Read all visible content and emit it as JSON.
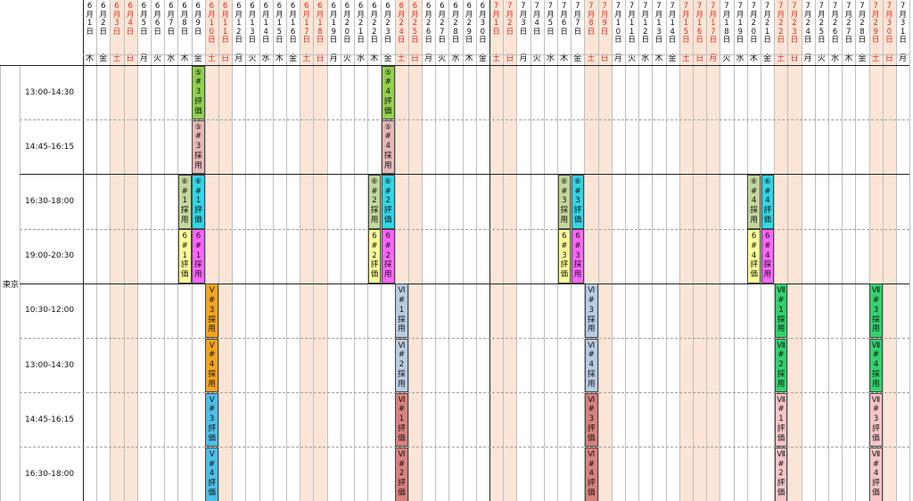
{
  "sheet": {
    "region": "東京",
    "colors": {
      "weekend_fill": "#fbe5d6",
      "red_text": "#e0281a",
      "grid_minor": "#bfbfbf",
      "grid_major": "#222222",
      "grid_dash": "#a0a0a0"
    },
    "dates": [
      {
        "m": "6",
        "d": "1",
        "dow": "木",
        "we": false
      },
      {
        "m": "6",
        "d": "2",
        "dow": "金",
        "we": false
      },
      {
        "m": "6",
        "d": "3",
        "dow": "土",
        "we": true
      },
      {
        "m": "6",
        "d": "4",
        "dow": "日",
        "we": true
      },
      {
        "m": "6",
        "d": "5",
        "dow": "月",
        "we": false
      },
      {
        "m": "6",
        "d": "6",
        "dow": "火",
        "we": false
      },
      {
        "m": "6",
        "d": "7",
        "dow": "水",
        "we": false
      },
      {
        "m": "6",
        "d": "8",
        "dow": "木",
        "we": false
      },
      {
        "m": "6",
        "d": "9",
        "dow": "金",
        "we": false
      },
      {
        "m": "6",
        "d": "10",
        "dow": "土",
        "we": true
      },
      {
        "m": "6",
        "d": "11",
        "dow": "日",
        "we": true
      },
      {
        "m": "6",
        "d": "12",
        "dow": "月",
        "we": false
      },
      {
        "m": "6",
        "d": "13",
        "dow": "火",
        "we": false
      },
      {
        "m": "6",
        "d": "14",
        "dow": "水",
        "we": false
      },
      {
        "m": "6",
        "d": "15",
        "dow": "木",
        "we": false
      },
      {
        "m": "6",
        "d": "16",
        "dow": "金",
        "we": false
      },
      {
        "m": "6",
        "d": "17",
        "dow": "土",
        "we": true
      },
      {
        "m": "6",
        "d": "18",
        "dow": "日",
        "we": true
      },
      {
        "m": "6",
        "d": "19",
        "dow": "月",
        "we": false
      },
      {
        "m": "6",
        "d": "20",
        "dow": "火",
        "we": false
      },
      {
        "m": "6",
        "d": "21",
        "dow": "水",
        "we": false
      },
      {
        "m": "6",
        "d": "22",
        "dow": "木",
        "we": false
      },
      {
        "m": "6",
        "d": "23",
        "dow": "金",
        "we": false
      },
      {
        "m": "6",
        "d": "24",
        "dow": "土",
        "we": true
      },
      {
        "m": "6",
        "d": "25",
        "dow": "日",
        "we": true
      },
      {
        "m": "6",
        "d": "26",
        "dow": "月",
        "we": false
      },
      {
        "m": "6",
        "d": "27",
        "dow": "火",
        "we": false
      },
      {
        "m": "6",
        "d": "28",
        "dow": "水",
        "we": false
      },
      {
        "m": "6",
        "d": "29",
        "dow": "木",
        "we": false
      },
      {
        "m": "6",
        "d": "30",
        "dow": "金",
        "we": false
      },
      {
        "m": "7",
        "d": "1",
        "dow": "土",
        "we": true
      },
      {
        "m": "7",
        "d": "2",
        "dow": "日",
        "we": true
      },
      {
        "m": "7",
        "d": "3",
        "dow": "月",
        "we": false
      },
      {
        "m": "7",
        "d": "4",
        "dow": "火",
        "we": false
      },
      {
        "m": "7",
        "d": "5",
        "dow": "水",
        "we": false
      },
      {
        "m": "7",
        "d": "6",
        "dow": "木",
        "we": false
      },
      {
        "m": "7",
        "d": "7",
        "dow": "金",
        "we": false
      },
      {
        "m": "7",
        "d": "8",
        "dow": "土",
        "we": true
      },
      {
        "m": "7",
        "d": "9",
        "dow": "日",
        "we": true
      },
      {
        "m": "7",
        "d": "10",
        "dow": "月",
        "we": false
      },
      {
        "m": "7",
        "d": "11",
        "dow": "火",
        "we": false
      },
      {
        "m": "7",
        "d": "12",
        "dow": "水",
        "we": false
      },
      {
        "m": "7",
        "d": "13",
        "dow": "木",
        "we": false
      },
      {
        "m": "7",
        "d": "14",
        "dow": "金",
        "we": false
      },
      {
        "m": "7",
        "d": "15",
        "dow": "土",
        "we": true
      },
      {
        "m": "7",
        "d": "16",
        "dow": "日",
        "we": true
      },
      {
        "m": "7",
        "d": "17",
        "dow": "月",
        "we": true
      },
      {
        "m": "7",
        "d": "18",
        "dow": "火",
        "we": false
      },
      {
        "m": "7",
        "d": "19",
        "dow": "水",
        "we": false
      },
      {
        "m": "7",
        "d": "20",
        "dow": "木",
        "we": false
      },
      {
        "m": "7",
        "d": "21",
        "dow": "金",
        "we": false
      },
      {
        "m": "7",
        "d": "22",
        "dow": "土",
        "we": true
      },
      {
        "m": "7",
        "d": "23",
        "dow": "日",
        "we": true
      },
      {
        "m": "7",
        "d": "24",
        "dow": "月",
        "we": false
      },
      {
        "m": "7",
        "d": "25",
        "dow": "火",
        "we": false
      },
      {
        "m": "7",
        "d": "26",
        "dow": "水",
        "we": false
      },
      {
        "m": "7",
        "d": "27",
        "dow": "木",
        "we": false
      },
      {
        "m": "7",
        "d": "28",
        "dow": "金",
        "we": false
      },
      {
        "m": "7",
        "d": "29",
        "dow": "土",
        "we": true
      },
      {
        "m": "7",
        "d": "30",
        "dow": "日",
        "we": true
      },
      {
        "m": "7",
        "d": "31",
        "dow": "月",
        "we": false
      }
    ],
    "slots": [
      {
        "label": "13:00-14:30"
      },
      {
        "label": "14:45-16:15"
      },
      {
        "label": "16:30-18:00"
      },
      {
        "label": "19:00-20:30"
      },
      {
        "label": "10:30-12:00"
      },
      {
        "label": "13:00-14:30"
      },
      {
        "label": "14:45-16:15"
      },
      {
        "label": "16:30-18:00"
      }
    ],
    "events": [
      {
        "col": 8,
        "slot": 0,
        "span": 1,
        "lines": [
          "⑤",
          "#",
          "3",
          "評",
          "価"
        ],
        "color": "#92d050"
      },
      {
        "col": 8,
        "slot": 1,
        "span": 1,
        "lines": [
          "⑤",
          "#",
          "3",
          "採",
          "用"
        ],
        "color": "#e6b8b7"
      },
      {
        "col": 22,
        "slot": 0,
        "span": 1,
        "lines": [
          "⑤",
          "#",
          "4",
          "評",
          "価"
        ],
        "color": "#92d050"
      },
      {
        "col": 22,
        "slot": 1,
        "span": 1,
        "lines": [
          "⑤",
          "#",
          "4",
          "採",
          "用"
        ],
        "color": "#e6b8b7"
      },
      {
        "col": 7,
        "slot": 2,
        "span": 1,
        "lines": [
          "⑥",
          "#",
          "1",
          "採",
          "用"
        ],
        "color": "#c4d79b"
      },
      {
        "col": 8,
        "slot": 2,
        "span": 1,
        "lines": [
          "⑥",
          "#",
          "1",
          "評",
          "価"
        ],
        "color": "#33d6e6"
      },
      {
        "col": 7,
        "slot": 3,
        "span": 1,
        "lines": [
          "6",
          "#",
          "1",
          "評",
          "価"
        ],
        "color": "#ffff99"
      },
      {
        "col": 8,
        "slot": 3,
        "span": 1,
        "lines": [
          "6",
          "#",
          "1",
          "採",
          "用"
        ],
        "color": "#ff66ff"
      },
      {
        "col": 21,
        "slot": 2,
        "span": 1,
        "lines": [
          "⑥",
          "#",
          "2",
          "採",
          "用"
        ],
        "color": "#c4d79b"
      },
      {
        "col": 22,
        "slot": 2,
        "span": 1,
        "lines": [
          "⑥",
          "#",
          "2",
          "評",
          "価"
        ],
        "color": "#33d6e6"
      },
      {
        "col": 21,
        "slot": 3,
        "span": 1,
        "lines": [
          "6",
          "#",
          "2",
          "評",
          "価"
        ],
        "color": "#ffff99"
      },
      {
        "col": 22,
        "slot": 3,
        "span": 1,
        "lines": [
          "6",
          "#",
          "2",
          "採",
          "用"
        ],
        "color": "#ff66ff"
      },
      {
        "col": 35,
        "slot": 2,
        "span": 1,
        "lines": [
          "⑥",
          "#",
          "3",
          "採",
          "用"
        ],
        "color": "#c4d79b"
      },
      {
        "col": 36,
        "slot": 2,
        "span": 1,
        "lines": [
          "⑥",
          "#",
          "3",
          "評",
          "価"
        ],
        "color": "#33d6e6"
      },
      {
        "col": 35,
        "slot": 3,
        "span": 1,
        "lines": [
          "6",
          "#",
          "3",
          "評",
          "価"
        ],
        "color": "#ffff99"
      },
      {
        "col": 36,
        "slot": 3,
        "span": 1,
        "lines": [
          "6",
          "#",
          "3",
          "採",
          "用"
        ],
        "color": "#ff66ff"
      },
      {
        "col": 49,
        "slot": 2,
        "span": 1,
        "lines": [
          "⑥",
          "#",
          "4",
          "採",
          "用"
        ],
        "color": "#c4d79b"
      },
      {
        "col": 50,
        "slot": 2,
        "span": 1,
        "lines": [
          "⑥",
          "#",
          "4",
          "評",
          "価"
        ],
        "color": "#33d6e6"
      },
      {
        "col": 49,
        "slot": 3,
        "span": 1,
        "lines": [
          "6",
          "#",
          "4",
          "評",
          "価"
        ],
        "color": "#ffff99"
      },
      {
        "col": 50,
        "slot": 3,
        "span": 1,
        "lines": [
          "6",
          "#",
          "4",
          "採",
          "用"
        ],
        "color": "#ff66ff"
      },
      {
        "col": 9,
        "slot": 4,
        "span": 1,
        "lines": [
          "Ⅴ",
          "#",
          "3",
          "採",
          "用"
        ],
        "color": "#f2a51e"
      },
      {
        "col": 9,
        "slot": 5,
        "span": 1,
        "lines": [
          "Ⅴ",
          "#",
          "4",
          "採",
          "用"
        ],
        "color": "#f2a51e"
      },
      {
        "col": 9,
        "slot": 6,
        "span": 1,
        "lines": [
          "Ⅴ",
          "#",
          "3",
          "評",
          "価"
        ],
        "color": "#4dbfe8"
      },
      {
        "col": 9,
        "slot": 7,
        "span": 1,
        "lines": [
          "Ⅴ",
          "#",
          "4",
          "評",
          "価"
        ],
        "color": "#4dbfe8"
      },
      {
        "col": 23,
        "slot": 4,
        "span": 1,
        "lines": [
          "Ⅵ",
          "#",
          "1",
          "採",
          "用"
        ],
        "color": "#b8cce4"
      },
      {
        "col": 23,
        "slot": 5,
        "span": 1,
        "lines": [
          "Ⅵ",
          "#",
          "2",
          "採",
          "用"
        ],
        "color": "#b8cce4"
      },
      {
        "col": 23,
        "slot": 6,
        "span": 1,
        "lines": [
          "Ⅵ",
          "#",
          "1",
          "評",
          "価"
        ],
        "color": "#d9827e"
      },
      {
        "col": 23,
        "slot": 7,
        "span": 1,
        "lines": [
          "Ⅵ",
          "#",
          "2",
          "評",
          "価"
        ],
        "color": "#d9827e"
      },
      {
        "col": 37,
        "slot": 4,
        "span": 1,
        "lines": [
          "Ⅵ",
          "#",
          "3",
          "採",
          "用"
        ],
        "color": "#b8cce4"
      },
      {
        "col": 37,
        "slot": 5,
        "span": 1,
        "lines": [
          "Ⅵ",
          "#",
          "4",
          "採",
          "用"
        ],
        "color": "#b8cce4"
      },
      {
        "col": 37,
        "slot": 6,
        "span": 1,
        "lines": [
          "Ⅵ",
          "#",
          "3",
          "評",
          "価"
        ],
        "color": "#d9827e"
      },
      {
        "col": 37,
        "slot": 7,
        "span": 1,
        "lines": [
          "Ⅵ",
          "#",
          "4",
          "評",
          "価"
        ],
        "color": "#d9827e"
      },
      {
        "col": 51,
        "slot": 4,
        "span": 1,
        "lines": [
          "Ⅶ",
          "#",
          "1",
          "採",
          "用"
        ],
        "color": "#33d16e"
      },
      {
        "col": 51,
        "slot": 5,
        "span": 1,
        "lines": [
          "Ⅶ",
          "#",
          "2",
          "採",
          "用"
        ],
        "color": "#33d16e"
      },
      {
        "col": 51,
        "slot": 6,
        "span": 1,
        "lines": [
          "Ⅶ",
          "#",
          "1",
          "評",
          "価"
        ],
        "color": "#f7c5c5"
      },
      {
        "col": 51,
        "slot": 7,
        "span": 1,
        "lines": [
          "Ⅶ",
          "#",
          "2",
          "評",
          "価"
        ],
        "color": "#f7c5c5"
      },
      {
        "col": 58,
        "slot": 4,
        "span": 1,
        "lines": [
          "Ⅶ",
          "#",
          "3",
          "採",
          "用"
        ],
        "color": "#33d16e"
      },
      {
        "col": 58,
        "slot": 5,
        "span": 1,
        "lines": [
          "Ⅶ",
          "#",
          "4",
          "採",
          "用"
        ],
        "color": "#33d16e"
      },
      {
        "col": 58,
        "slot": 6,
        "span": 1,
        "lines": [
          "Ⅶ",
          "#",
          "3",
          "評",
          "価"
        ],
        "color": "#f7c5c5"
      },
      {
        "col": 58,
        "slot": 7,
        "span": 1,
        "lines": [
          "Ⅶ",
          "#",
          "4",
          "評",
          "価"
        ],
        "color": "#f7c5c5"
      }
    ]
  }
}
